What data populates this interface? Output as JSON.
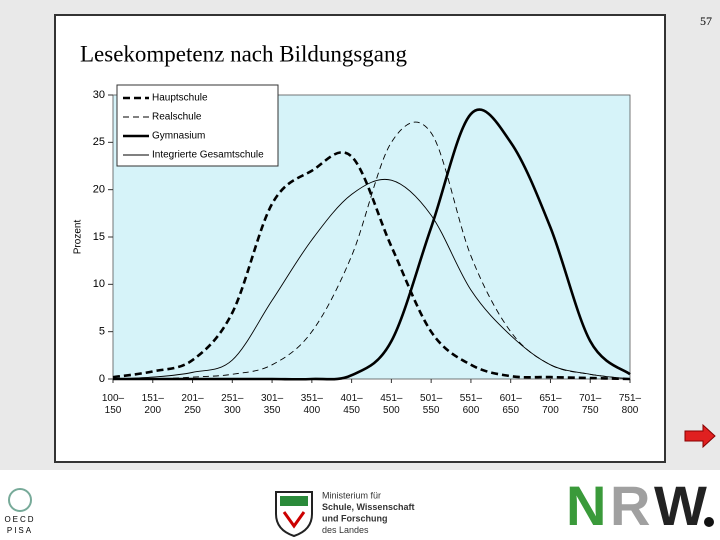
{
  "slide": {
    "page_number": "57",
    "oecd": "OECD",
    "pisa": "PISA",
    "ministry": [
      "Ministerium für",
      "Schule, Wissenschaft",
      "und Forschung",
      "des Landes"
    ],
    "logo_letters": [
      "N",
      "R",
      "W"
    ]
  },
  "chart_data": {
    "type": "line",
    "title": "Lesekompetenz nach Bildungsgang",
    "ylabel": "Prozent",
    "categories": [
      "100–\n150",
      "151–\n200",
      "201–\n250",
      "251–\n300",
      "301–\n350",
      "351–\n400",
      "401–\n450",
      "451–\n500",
      "501–\n550",
      "551–\n600",
      "601–\n650",
      "651–\n700",
      "701–\n750",
      "751–\n800"
    ],
    "series": [
      {
        "name": "Hauptschule",
        "color": "#000000",
        "style": "dashed",
        "weight": "bold",
        "values": [
          0.2,
          0.8,
          2,
          7,
          18.5,
          22,
          23.5,
          14,
          5,
          1.5,
          0.3,
          0.2,
          0.1,
          0
        ]
      },
      {
        "name": "Realschule",
        "color": "#000000",
        "style": "dashed",
        "weight": "thin",
        "values": [
          0,
          0,
          0.2,
          0.5,
          1.5,
          5,
          13,
          25,
          26,
          13,
          5,
          1.5,
          0.5,
          0
        ]
      },
      {
        "name": "Gymnasium",
        "color": "#000000",
        "style": "solid",
        "weight": "bold",
        "values": [
          0,
          0,
          0,
          0,
          0,
          0,
          0.4,
          4,
          16,
          28,
          25,
          16,
          4,
          0.5
        ]
      },
      {
        "name": "Integrierte Gesamtschule",
        "color": "#000000",
        "style": "solid",
        "weight": "thin",
        "values": [
          0,
          0.2,
          0.7,
          2,
          8.3,
          14.7,
          19.5,
          21,
          17.3,
          9.4,
          4.6,
          1.5,
          0.5,
          0
        ]
      }
    ],
    "ylim": [
      0,
      30
    ],
    "yticks": [
      0,
      5,
      10,
      15,
      20,
      25,
      30
    ],
    "legend": "upper left",
    "plot_color": "#d6f3f9"
  }
}
